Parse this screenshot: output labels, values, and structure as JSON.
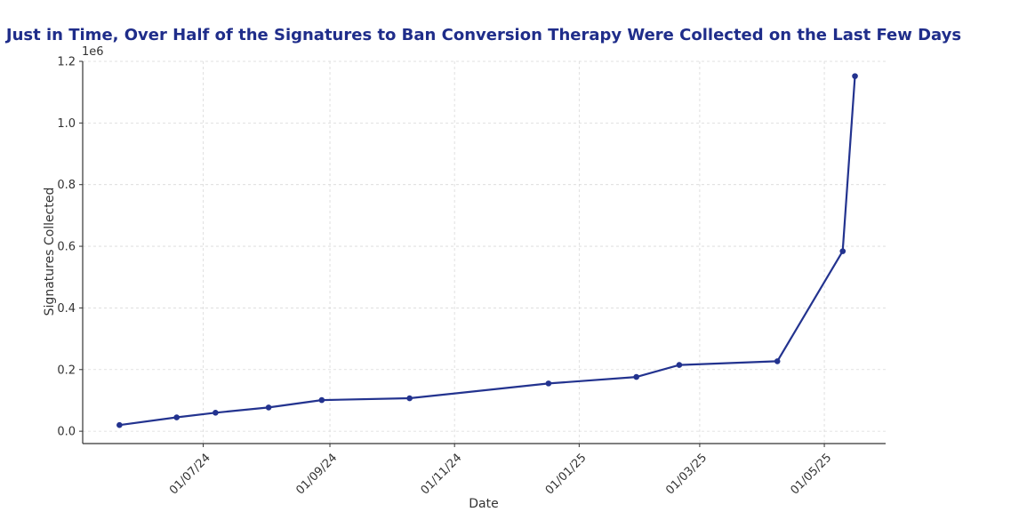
{
  "chart_data": {
    "type": "line",
    "title": "Just in Time, Over Half of the Signatures to Ban Conversion Therapy Were Collected on the Last Few Days",
    "xlabel": "Date",
    "ylabel": "Signatures Collected",
    "y_offset_label": "1e6",
    "x_scale": "date",
    "xlim": [
      "2024-05-03",
      "2025-05-31"
    ],
    "ylim": [
      -40000,
      1200000
    ],
    "y_ticks": [
      0,
      200000,
      400000,
      600000,
      800000,
      1000000,
      1200000
    ],
    "y_tick_labels": [
      "0.0",
      "0.2",
      "0.4",
      "0.6",
      "0.8",
      "1.0",
      "1.2"
    ],
    "x_ticks": [
      "2024-07-01",
      "2024-09-01",
      "2024-11-01",
      "2025-01-01",
      "2025-03-01",
      "2025-05-01"
    ],
    "x_tick_labels": [
      "01/07/24",
      "01/09/24",
      "01/11/24",
      "01/01/25",
      "01/03/25",
      "01/05/25"
    ],
    "grid": true,
    "series": [
      {
        "x": [
          "2024-05-21",
          "2024-06-18",
          "2024-07-07",
          "2024-08-02",
          "2024-08-28",
          "2024-10-10",
          "2024-12-17",
          "2025-01-29",
          "2025-02-19",
          "2025-04-08",
          "2025-05-10",
          "2025-05-16"
        ],
        "y": [
          20000,
          45000,
          60000,
          77000,
          101000,
          107000,
          155000,
          176000,
          215000,
          227000,
          584000,
          1152000
        ]
      }
    ],
    "colors": {
      "line": "#23338f",
      "title": "#1f2d8a"
    }
  }
}
